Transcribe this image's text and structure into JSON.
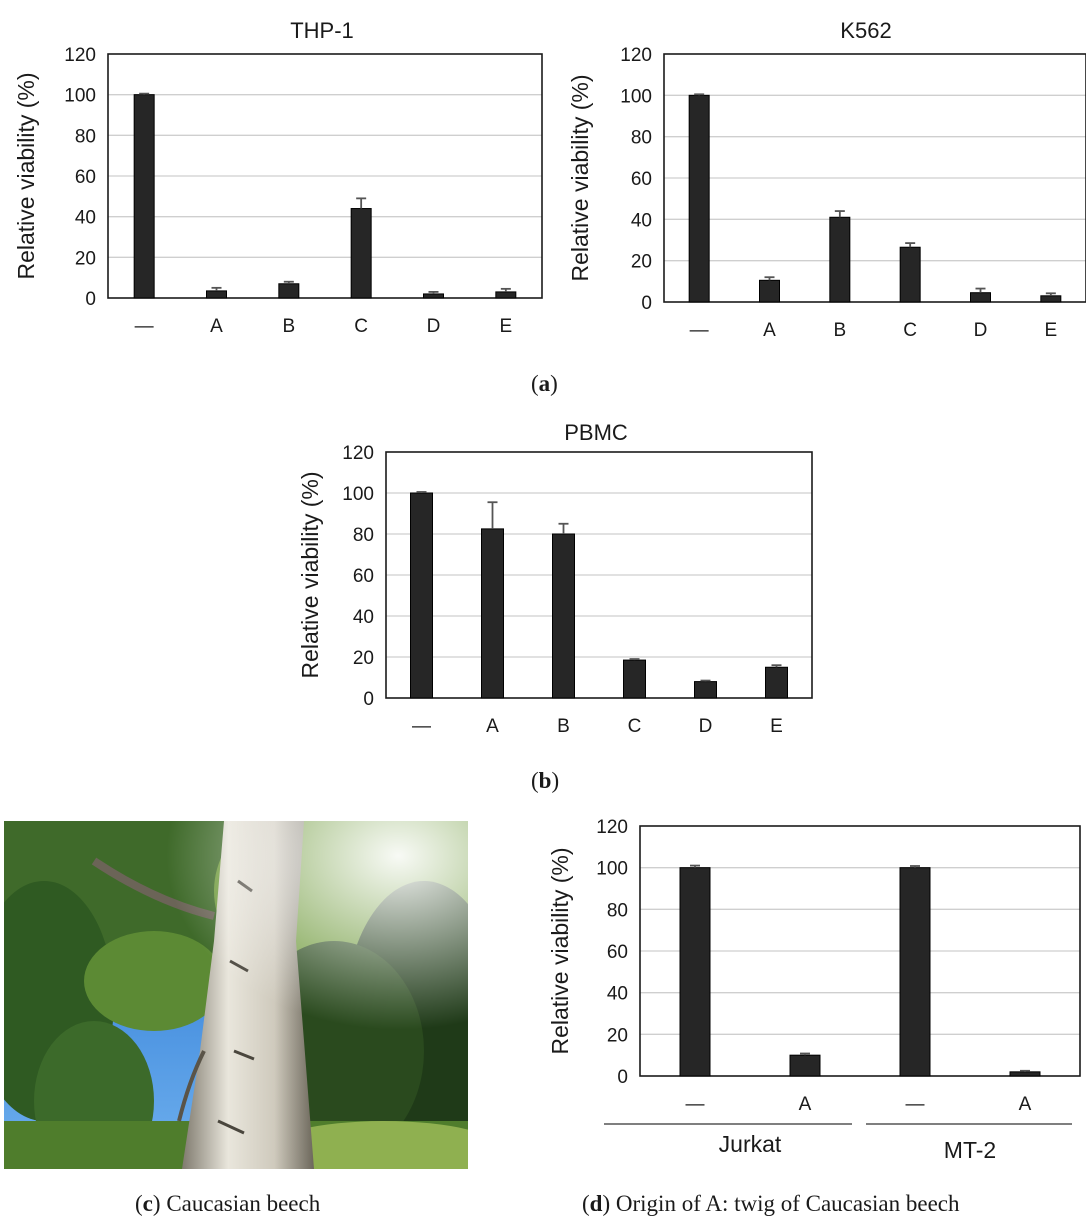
{
  "panels": {
    "a": {
      "label": "a"
    },
    "b": {
      "label": "b"
    },
    "c": {
      "label": "c",
      "caption": "Caucasian beech"
    },
    "d": {
      "label": "d",
      "caption": "Origin of A: twig of Caucasian beech"
    }
  },
  "chart_data": [
    {
      "id": "thp1",
      "type": "bar",
      "title": "THP-1",
      "ylabel": "Relative viability (%)",
      "categories": [
        "—",
        "A",
        "B",
        "C",
        "D",
        "E"
      ],
      "values": [
        100,
        3.5,
        7,
        44,
        2,
        3
      ],
      "errors": [
        0.5,
        1.5,
        1,
        5,
        1,
        1.5
      ],
      "ylim": [
        0,
        120
      ],
      "yticks": [
        0,
        20,
        40,
        60,
        80,
        100,
        120
      ],
      "grid": true
    },
    {
      "id": "k562",
      "type": "bar",
      "title": "K562",
      "ylabel": "Relative viability (%)",
      "categories": [
        "—",
        "A",
        "B",
        "C",
        "D",
        "E"
      ],
      "values": [
        100,
        10.5,
        41,
        26.5,
        4.5,
        3
      ],
      "errors": [
        0.5,
        1.5,
        3,
        2,
        2,
        1.2
      ],
      "ylim": [
        0,
        120
      ],
      "yticks": [
        0,
        20,
        40,
        60,
        80,
        100,
        120
      ],
      "grid": true
    },
    {
      "id": "pbmc",
      "type": "bar",
      "title": "PBMC",
      "ylabel": "Relative viability (%)",
      "categories": [
        "—",
        "A",
        "B",
        "C",
        "D",
        "E"
      ],
      "values": [
        100,
        82.5,
        80,
        18.5,
        8,
        15
      ],
      "errors": [
        0.5,
        13,
        5,
        0.5,
        0.5,
        1
      ],
      "ylim": [
        0,
        120
      ],
      "yticks": [
        0,
        20,
        40,
        60,
        80,
        100,
        120
      ],
      "grid": true
    },
    {
      "id": "jurkat_mt2",
      "type": "bar",
      "title": "",
      "ylabel": "Relative viability (%)",
      "categories": [
        "—",
        "A",
        "—",
        "A"
      ],
      "groups": [
        {
          "name": "Jurkat",
          "categories": [
            0,
            1
          ]
        },
        {
          "name": "MT-2",
          "categories": [
            2,
            3
          ]
        }
      ],
      "values": [
        100,
        10,
        100,
        2
      ],
      "errors": [
        1,
        0.8,
        0.8,
        0.5
      ],
      "ylim": [
        0,
        120
      ],
      "yticks": [
        0,
        20,
        40,
        60,
        80,
        100,
        120
      ],
      "grid": true
    }
  ]
}
